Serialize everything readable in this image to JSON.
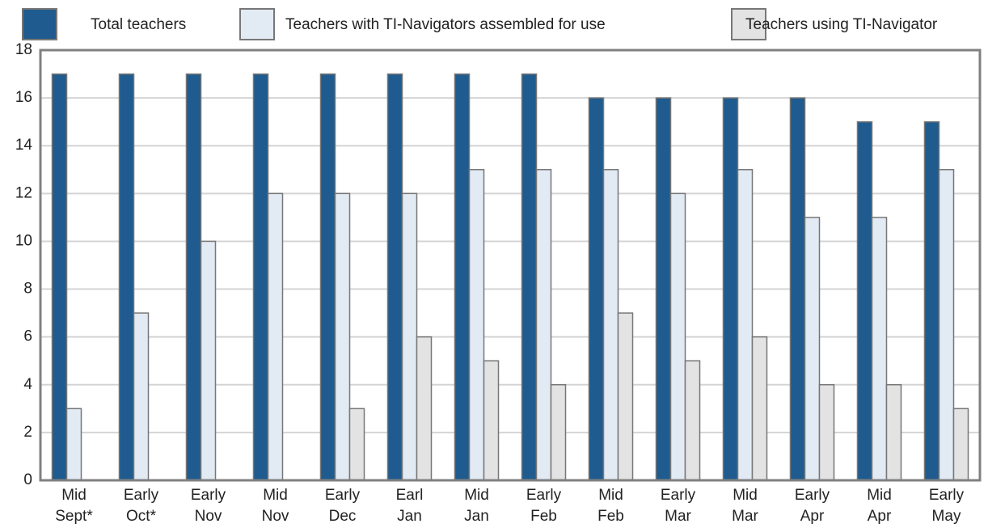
{
  "chart_data": {
    "type": "bar",
    "categories": [
      [
        "Mid",
        "Sept*"
      ],
      [
        "Early",
        "Oct*"
      ],
      [
        "Early",
        "Nov"
      ],
      [
        "Mid",
        "Nov"
      ],
      [
        "Early",
        "Dec"
      ],
      [
        "Earl",
        "Jan"
      ],
      [
        "Mid",
        "Jan"
      ],
      [
        "Early",
        "Feb"
      ],
      [
        "Mid",
        "Feb"
      ],
      [
        "Early",
        "Mar"
      ],
      [
        "Mid",
        "Mar"
      ],
      [
        "Early",
        "Apr"
      ],
      [
        "Mid",
        "Apr"
      ],
      [
        "Early",
        "May"
      ]
    ],
    "series": [
      {
        "name": "Total teachers",
        "color": "#1f5b8e",
        "values": [
          17,
          17,
          17,
          17,
          17,
          17,
          17,
          17,
          16,
          16,
          16,
          16,
          15,
          15
        ]
      },
      {
        "name": "Teachers with TI-Navigators assembled for use",
        "color": "#e2eaf4",
        "values": [
          3,
          7,
          10,
          12,
          12,
          12,
          13,
          13,
          13,
          12,
          13,
          11,
          11,
          13
        ]
      },
      {
        "name": "Teachers using TI-Navigator",
        "color": "#e3e3e3",
        "values": [
          null,
          null,
          null,
          null,
          3,
          6,
          5,
          4,
          7,
          5,
          6,
          4,
          4,
          3
        ]
      }
    ],
    "ylim": [
      0,
      18
    ],
    "yticks": [
      0,
      2,
      4,
      6,
      8,
      10,
      12,
      14,
      16,
      18
    ],
    "grid": true
  }
}
